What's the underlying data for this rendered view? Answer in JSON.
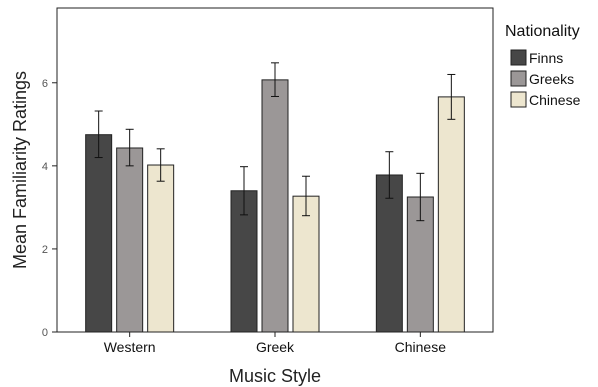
{
  "chart_data": {
    "type": "bar",
    "title": "",
    "xlabel": "Music Style",
    "ylabel": "Mean Familiarity Ratings",
    "ylim": [
      0,
      7.8
    ],
    "yticks": [
      0,
      2,
      4,
      6
    ],
    "grid": false,
    "legend_title": "Nationality",
    "legend_position": "top-right outside",
    "categories": [
      "Western",
      "Greek",
      "Chinese"
    ],
    "series": [
      {
        "name": "Finns",
        "color": "#474747",
        "values": [
          4.75,
          3.4,
          3.78
        ],
        "error_low": [
          4.2,
          2.82,
          3.22
        ],
        "error_high": [
          5.32,
          3.98,
          4.34
        ]
      },
      {
        "name": "Greeks",
        "color": "#9b9797",
        "values": [
          4.43,
          6.07,
          3.25
        ],
        "error_low": [
          4.0,
          5.67,
          2.68
        ],
        "error_high": [
          4.88,
          6.48,
          3.82
        ]
      },
      {
        "name": "Chinese",
        "color": "#ede6cf",
        "values": [
          4.02,
          3.27,
          5.66
        ],
        "error_low": [
          3.63,
          2.8,
          5.12
        ],
        "error_high": [
          4.41,
          3.75,
          6.2
        ]
      }
    ]
  }
}
